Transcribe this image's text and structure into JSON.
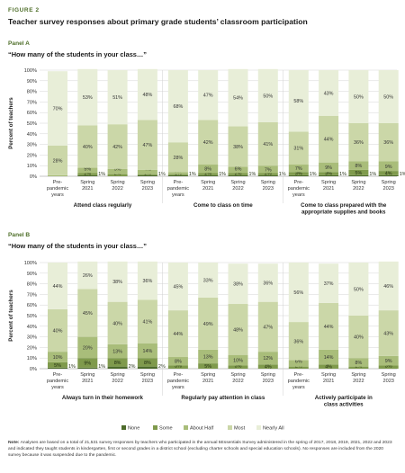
{
  "figure_label": "FIGURE 2",
  "title": "Teacher survey responses about primary grade students’ classroom participation",
  "panel_a_label": "Panel A",
  "panel_a_question": "“How many of the students in your class…”",
  "panel_b_label": "Panel B",
  "panel_b_question": "“How many of the students in your class…”",
  "note_label": "Note:",
  "note_text": "Analyses are based on a total of 21,531 survey responses by teachers who participated in the annual 5Essentials Survey administered in the spring of 2017, 2018, 2019, 2021, 2022 and 2023 and indicated they taught students in kindergarten, first or second grades in a district school (excluding charter schools and special education schools). No responses are included from the 2020 survey because it was suspended due to the pandemic.",
  "colors": {
    "None": "#4d6b2b",
    "Some": "#7f9a4c",
    "About Half": "#a9bd7a",
    "Most": "#cbd7a8",
    "Nearly All": "#e8eed8"
  },
  "chart_data": [
    {
      "type": "bar",
      "stacked": true,
      "panel": "Panel A",
      "ylabel": "Percent of teachers",
      "ylim": [
        0,
        100
      ],
      "yticks": [
        "0%",
        "10%",
        "20%",
        "30%",
        "40%",
        "50%",
        "60%",
        "70%",
        "80%",
        "90%",
        "100%"
      ],
      "grid": true,
      "legend_position": "bottom",
      "categories": [
        "Pre-pandemic years",
        "Spring 2021",
        "Spring 2022",
        "Spring 2023"
      ],
      "category_lines": [
        [
          "Pre-",
          "pandemic",
          "years"
        ],
        [
          "Spring",
          "2021"
        ],
        [
          "Spring",
          "2022"
        ],
        [
          "Spring",
          "2023"
        ]
      ],
      "groups": [
        {
          "label": [
            "Attend class regularly"
          ],
          "bars": [
            {
              "values": [
                0,
                0,
                1,
                28,
                70
              ],
              "labels": [
                "",
                "",
                "1%",
                "28%",
                "70%"
              ]
            },
            {
              "values": [
                1,
                2,
                5,
                40,
                53
              ],
              "labels": [
                "1%",
                "2%",
                "5%",
                "40%",
                "53%"
              ]
            },
            {
              "values": [
                0,
                2,
                5,
                42,
                51
              ],
              "labels": [
                "",
                "2%",
                "5%",
                "42%",
                "51%"
              ]
            },
            {
              "values": [
                1,
                1,
                4,
                47,
                48
              ],
              "labels": [
                "1%",
                "1%",
                "4%",
                "47%",
                "48%"
              ]
            }
          ]
        },
        {
          "label": [
            "Come to class on time"
          ],
          "bars": [
            {
              "values": [
                1,
                1,
                2,
                28,
                68
              ],
              "labels": [
                "1%",
                "1%",
                "2%",
                "28%",
                "68%"
              ]
            },
            {
              "values": [
                1,
                2,
                8,
                42,
                47
              ],
              "labels": [
                "1%",
                "2%",
                "8%",
                "42%",
                "47%"
              ]
            },
            {
              "values": [
                1,
                2,
                6,
                38,
                54
              ],
              "labels": [
                "1%",
                "2%",
                "6%",
                "38%",
                "54%"
              ]
            },
            {
              "values": [
                1,
                2,
                7,
                41,
                50
              ],
              "labels": [
                "1%",
                "2%",
                "7%",
                "41%",
                "50%"
              ]
            }
          ]
        },
        {
          "label": [
            "Come to class prepared with the",
            "appropriate supplies and books"
          ],
          "bars": [
            {
              "values": [
                1,
                3,
                7,
                31,
                58
              ],
              "labels": [
                "1%",
                "3%",
                "7%",
                "31%",
                "58%"
              ]
            },
            {
              "values": [
                1,
                3,
                9,
                44,
                43
              ],
              "labels": [
                "1%",
                "3%",
                "9%",
                "44%",
                "43%"
              ]
            },
            {
              "values": [
                1,
                5,
                8,
                36,
                50
              ],
              "labels": [
                "1%",
                "5%",
                "8%",
                "36%",
                "50%"
              ]
            },
            {
              "values": [
                1,
                4,
                9,
                36,
                50
              ],
              "labels": [
                "1%",
                "4%",
                "9%",
                "36%",
                "50%"
              ]
            }
          ]
        }
      ]
    },
    {
      "type": "bar",
      "stacked": true,
      "panel": "Panel B",
      "ylabel": "Percent of teachers",
      "ylim": [
        0,
        100
      ],
      "yticks": [
        "0%",
        "10%",
        "20%",
        "30%",
        "40%",
        "50%",
        "60%",
        "70%",
        "80%",
        "90%",
        "100%"
      ],
      "grid": true,
      "legend_position": "bottom",
      "categories": [
        "Pre-pandemic years",
        "Spring 2021",
        "Spring 2022",
        "Spring 2023"
      ],
      "category_lines": [
        [
          "Pre-",
          "pandemic",
          "years"
        ],
        [
          "Spring",
          "2021"
        ],
        [
          "Spring",
          "2022"
        ],
        [
          "Spring",
          "2023"
        ]
      ],
      "groups": [
        {
          "label": [
            "Always turn in their homework"
          ],
          "bars": [
            {
              "values": [
                1,
                5,
                10,
                40,
                44
              ],
              "labels": [
                "1%",
                "5%",
                "10%",
                "40%",
                "44%"
              ]
            },
            {
              "values": [
                1,
                9,
                20,
                45,
                26
              ],
              "labels": [
                "1%",
                "9%",
                "20%",
                "45%",
                "26%"
              ]
            },
            {
              "values": [
                2,
                8,
                13,
                40,
                38
              ],
              "labels": [
                "2%",
                "8%",
                "13%",
                "40%",
                "38%"
              ]
            },
            {
              "values": [
                2,
                8,
                14,
                41,
                36
              ],
              "labels": [
                "2%",
                "8%",
                "14%",
                "41%",
                "36%"
              ]
            }
          ]
        },
        {
          "label": [
            "Regularly pay attention in class"
          ],
          "bars": [
            {
              "values": [
                0,
                3,
                8,
                44,
                45
              ],
              "labels": [
                "",
                "3%",
                "8%",
                "44%",
                "45%"
              ]
            },
            {
              "values": [
                0,
                5,
                13,
                49,
                33
              ],
              "labels": [
                "",
                "5%",
                "13%",
                "49%",
                "33%"
              ]
            },
            {
              "values": [
                0,
                3,
                10,
                48,
                38
              ],
              "labels": [
                "",
                "3%",
                "10%",
                "48%",
                "38%"
              ]
            },
            {
              "values": [
                0,
                4,
                12,
                47,
                36
              ],
              "labels": [
                "",
                "4%",
                "12%",
                "47%",
                "36%"
              ]
            }
          ]
        },
        {
          "label": [
            "Actively participate in",
            "class activities"
          ],
          "bars": [
            {
              "values": [
                0,
                2,
                6,
                36,
                56
              ],
              "labels": [
                "",
                "2%",
                "6%",
                "36%",
                "56%"
              ]
            },
            {
              "values": [
                0,
                4,
                14,
                44,
                37
              ],
              "labels": [
                "",
                "4%",
                "14%",
                "44%",
                "37%"
              ]
            },
            {
              "values": [
                0,
                2,
                8,
                40,
                50
              ],
              "labels": [
                "",
                "2%",
                "8%",
                "40%",
                "50%"
              ]
            },
            {
              "values": [
                0,
                3,
                9,
                43,
                46
              ],
              "labels": [
                "",
                "3%",
                "9%",
                "43%",
                "46%"
              ]
            }
          ]
        }
      ]
    }
  ],
  "legend": [
    "None",
    "Some",
    "About Half",
    "Most",
    "Nearly All"
  ]
}
